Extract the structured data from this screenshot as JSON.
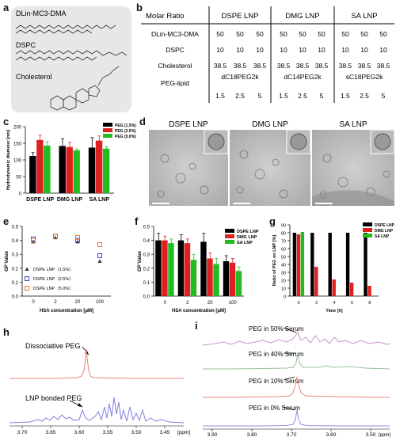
{
  "panels": {
    "a": {
      "letter": "a",
      "molecules": [
        "DLin-MC3-DMA",
        "DSPC",
        "Cholesterol"
      ]
    },
    "b": {
      "letter": "b",
      "header_label": "Molar Ratio",
      "columns": [
        "DSPE LNP",
        "DMG LNP",
        "SA LNP"
      ],
      "rows": [
        {
          "label": "DLin-MC3-DMA",
          "values": [
            "50",
            "50",
            "50",
            "50",
            "50",
            "50",
            "50",
            "50",
            "50"
          ]
        },
        {
          "label": "DSPC",
          "values": [
            "10",
            "10",
            "10",
            "10",
            "10",
            "10",
            "10",
            "10",
            "10"
          ]
        },
        {
          "label": "Cholesterol",
          "values": [
            "38.5",
            "38.5",
            "38.5",
            "38.5",
            "38.5",
            "38.5",
            "38.5",
            "38.5",
            "38.5"
          ]
        }
      ],
      "peg_label": "PEG-lipid",
      "peg_types": [
        "dC18PEG2k",
        "dC14PEG2k",
        "sC18PEG2k"
      ],
      "peg_values": [
        "1.5",
        "2.5",
        "5",
        "1.5",
        "2.5",
        "5",
        "1.5",
        "2.5",
        "5"
      ]
    },
    "c": {
      "letter": "c"
    },
    "d": {
      "letter": "d",
      "images": [
        "DSPE LNP",
        "DMG LNP",
        "SA LNP"
      ]
    },
    "e": {
      "letter": "e"
    },
    "f": {
      "letter": "f"
    },
    "g": {
      "letter": "g"
    },
    "h": {
      "letter": "h",
      "labels": [
        "Dissociative PEG",
        "LNP bonded PEG"
      ],
      "xlabel": "[ppm]",
      "ticks": [
        "3.70",
        "3.65",
        "3.60",
        "3.55",
        "3.50",
        "3.45"
      ]
    },
    "i": {
      "letter": "i",
      "labels": [
        "PEG in 50% Serum",
        "PEG in 40% Serum",
        "PEG in 10% Serum",
        "PEG in 0% Serum"
      ],
      "xlabel": "[ppm]",
      "ticks": [
        "3.90",
        "3.80",
        "3.70",
        "3.60",
        "3.50"
      ]
    }
  },
  "chart_data": [
    {
      "panel": "c",
      "type": "bar",
      "ylabel": "Hydrodynamic diameter [nm]",
      "categories": [
        "DSPE LNP",
        "DMG LNP",
        "SA LNP"
      ],
      "ylim": [
        0,
        200
      ],
      "yticks": [
        "0",
        "50",
        "100",
        "150",
        "200"
      ],
      "series": [
        {
          "name": "PEG (1.5%)",
          "color": "#000000",
          "values": [
            112,
            142,
            137
          ],
          "errors": [
            10,
            22,
            30
          ]
        },
        {
          "name": "PEG (2.5%)",
          "color": "#e02020",
          "values": [
            160,
            139,
            158
          ],
          "errors": [
            14,
            14,
            14
          ]
        },
        {
          "name": "PEG (5.0%)",
          "color": "#22bb22",
          "values": [
            143,
            129,
            134
          ],
          "errors": [
            12,
            4,
            6
          ]
        }
      ]
    },
    {
      "panel": "e",
      "type": "scatter",
      "xlabel": "HSA concentration [μM]",
      "ylabel": "GP Value",
      "categories": [
        "0",
        "2",
        "20",
        "100"
      ],
      "ylim": [
        0.0,
        0.5
      ],
      "yticks": [
        "0.0",
        "0.1",
        "0.2",
        "0.3",
        "0.4",
        "0.5"
      ],
      "series": [
        {
          "name": "DSPE LNP（1.5%）",
          "marker": "triangle",
          "color": "#333333",
          "values": [
            0.39,
            0.42,
            0.39,
            0.25
          ]
        },
        {
          "name": "DSPE LNP（2.5%）",
          "marker": "square",
          "color": "#2233cc",
          "values": [
            0.41,
            0.43,
            0.4,
            0.29
          ]
        },
        {
          "name": "DSPE LNP（5.0%）",
          "marker": "square",
          "color": "#ee6622",
          "values": [
            0.4,
            0.43,
            0.42,
            0.37
          ]
        }
      ]
    },
    {
      "panel": "f",
      "type": "bar",
      "xlabel": "HSA concentration [μM]",
      "ylabel": "GP Value",
      "categories": [
        "0",
        "2",
        "20",
        "100"
      ],
      "ylim": [
        0.0,
        0.5
      ],
      "yticks": [
        "0.0",
        "0.1",
        "0.2",
        "0.3",
        "0.4",
        "0.5"
      ],
      "series": [
        {
          "name": "DSPE LNP",
          "color": "#000000",
          "values": [
            0.4,
            0.4,
            0.39,
            0.25
          ],
          "errors": [
            0.05,
            0.04,
            0.06,
            0.04
          ]
        },
        {
          "name": "DMG LNP",
          "color": "#e02020",
          "values": [
            0.4,
            0.38,
            0.27,
            0.24
          ],
          "errors": [
            0.03,
            0.03,
            0.04,
            0.03
          ]
        },
        {
          "name": "SA LNP",
          "color": "#22bb22",
          "values": [
            0.38,
            0.26,
            0.23,
            0.18
          ],
          "errors": [
            0.03,
            0.04,
            0.04,
            0.03
          ]
        }
      ]
    },
    {
      "panel": "g",
      "type": "bar",
      "xlabel": "Time [h]",
      "ylabel": "Ratio of PEG on LNP [%]",
      "categories": [
        "0",
        "2",
        "4",
        "6",
        "8"
      ],
      "ylim": [
        0,
        90
      ],
      "yticks": [
        "0",
        "10",
        "20",
        "30",
        "40",
        "50",
        "60",
        "70",
        "80",
        "90"
      ],
      "series": [
        {
          "name": "DSPE LNP",
          "color": "#000000",
          "values": [
            80,
            80,
            80,
            80,
            80
          ]
        },
        {
          "name": "DMG LNP",
          "color": "#e02020",
          "values": [
            78,
            37,
            21,
            17,
            13
          ]
        },
        {
          "name": "SA LNP",
          "color": "#22bb22",
          "values": [
            81,
            0,
            0,
            0,
            0
          ]
        }
      ]
    }
  ]
}
